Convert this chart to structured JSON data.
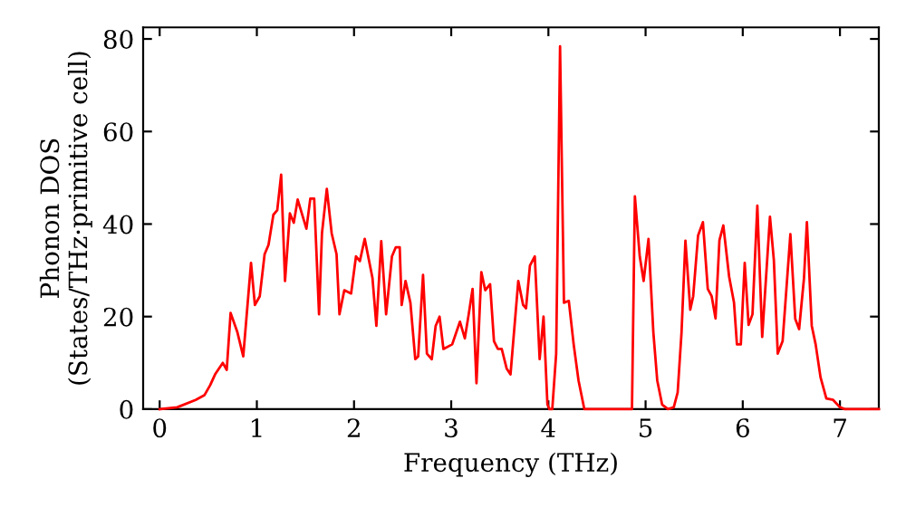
{
  "chart_data": {
    "type": "line",
    "xlabel": "Frequency (THz)",
    "ylabel": "Phonon DOS\n(States/THz·primitive cell)",
    "xlim": [
      -0.17,
      7.4
    ],
    "ylim": [
      0,
      82.5
    ],
    "xticks": [
      0,
      1,
      2,
      3,
      4,
      5,
      6,
      7
    ],
    "yticks": [
      0,
      20,
      40,
      60,
      80
    ],
    "grid": false,
    "legend": false,
    "marker": "none",
    "line_style": "solid",
    "series": [
      {
        "color": "#ff0000",
        "x": [
          0,
          0.18,
          0.37,
          0.46,
          0.52,
          0.57,
          0.65,
          0.69,
          0.73,
          0.8,
          0.86,
          0.94,
          0.98,
          1.03,
          1.08,
          1.12,
          1.17,
          1.21,
          1.25,
          1.29,
          1.34,
          1.38,
          1.42,
          1.51,
          1.55,
          1.59,
          1.64,
          1.67,
          1.72,
          1.77,
          1.82,
          1.85,
          1.9,
          1.97,
          2.02,
          2.06,
          2.11,
          2.19,
          2.23,
          2.28,
          2.33,
          2.39,
          2.43,
          2.47,
          2.49,
          2.53,
          2.58,
          2.63,
          2.66,
          2.71,
          2.75,
          2.8,
          2.84,
          2.88,
          2.92,
          3.01,
          3.09,
          3.14,
          3.18,
          3.22,
          3.26,
          3.31,
          3.35,
          3.4,
          3.44,
          3.48,
          3.52,
          3.57,
          3.61,
          3.69,
          3.74,
          3.77,
          3.81,
          3.86,
          3.91,
          3.95,
          3.99,
          4.01,
          4.04,
          4.08,
          4.12,
          4.16,
          4.21,
          4.26,
          4.31,
          4.37,
          4.86,
          4.89,
          4.94,
          4.98,
          5.03,
          5.08,
          5.12,
          5.17,
          5.23,
          5.29,
          5.33,
          5.37,
          5.41,
          5.46,
          5.49,
          5.54,
          5.59,
          5.64,
          5.68,
          5.72,
          5.76,
          5.8,
          5.86,
          5.91,
          5.94,
          5.98,
          6.02,
          6.06,
          6.1,
          6.15,
          6.2,
          6.28,
          6.32,
          6.36,
          6.41,
          6.49,
          6.54,
          6.58,
          6.63,
          6.66,
          6.71,
          6.75,
          6.8,
          6.86,
          6.93,
          7.0,
          7.05,
          7.4
        ],
        "values": [
          0,
          0.4,
          2,
          3,
          5.2,
          7.5,
          10,
          8.5,
          20.8,
          16.6,
          11.4,
          31.6,
          22.5,
          24.4,
          33.5,
          35.5,
          42,
          43,
          50.7,
          27.7,
          42.3,
          40.3,
          45.3,
          39,
          45.5,
          45.5,
          20.5,
          38,
          47.6,
          38,
          33.5,
          20.5,
          25.7,
          25,
          33,
          32,
          36.8,
          28.3,
          18,
          36.3,
          20.5,
          33,
          35,
          35,
          22.5,
          27.7,
          23,
          10.8,
          11.4,
          29,
          12,
          10.8,
          18,
          20,
          13,
          14,
          18.9,
          15.3,
          20.5,
          26,
          5.6,
          29.6,
          25.7,
          27,
          14.7,
          13,
          13,
          8.8,
          7.5,
          27.7,
          22.5,
          21.8,
          31,
          33,
          10.8,
          20,
          1,
          0,
          0,
          12,
          78.4,
          23,
          23.4,
          14,
          6.2,
          0,
          0,
          46,
          33,
          27.7,
          36.8,
          16.6,
          6.2,
          1,
          0,
          0.4,
          3.6,
          16.6,
          36.4,
          21.5,
          24.4,
          37.5,
          40.4,
          26,
          24.4,
          19.6,
          36.5,
          39.7,
          28.6,
          23,
          14,
          14,
          31.6,
          18.2,
          20.5,
          44,
          15.6,
          41.6,
          32.2,
          12,
          14.7,
          37.8,
          19.5,
          17.3,
          28.3,
          40.4,
          18,
          14,
          6.9,
          2.3,
          2,
          0.4,
          0,
          0
        ]
      }
    ]
  }
}
